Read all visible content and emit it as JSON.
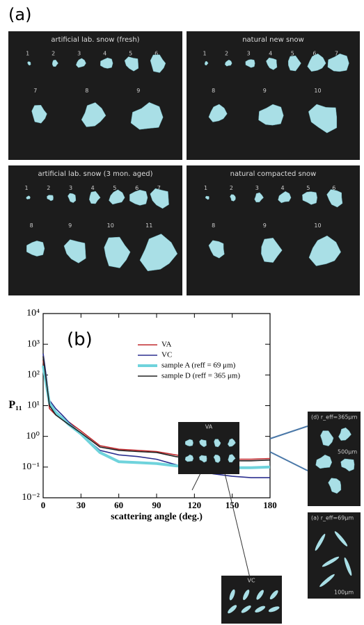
{
  "panel_a": {
    "label": "(a)",
    "panels": [
      {
        "title": "artificial lab. snow (fresh)",
        "labels": [
          [
            "1",
            "2",
            "3",
            "4",
            "5",
            "6"
          ],
          [
            "7",
            "8",
            "9"
          ]
        ]
      },
      {
        "title": "natural new snow",
        "labels": [
          [
            "1",
            "2",
            "3",
            "4",
            "5",
            "6",
            "7"
          ],
          [
            "8",
            "9",
            "10"
          ]
        ]
      },
      {
        "title": "artificial lab. snow (3 mon. aged)",
        "labels": [
          [
            "1",
            "2",
            "3",
            "4",
            "5",
            "6",
            "7"
          ],
          [
            "8",
            "9",
            "10",
            "11"
          ]
        ]
      },
      {
        "title": "natural compacted snow",
        "labels": [
          [
            "1",
            "2",
            "3",
            "4",
            "5",
            "6"
          ],
          [
            "8",
            "9",
            "10"
          ]
        ]
      }
    ]
  },
  "insets": {
    "va": "VA",
    "vc": "VC",
    "d_title": "(d) r_eff=365μm",
    "d_scale": "500μm",
    "a_title": "(a) r_eff=69μm",
    "a_scale": "100μm"
  },
  "chart_data": {
    "type": "line",
    "label": "(b)",
    "xlabel": "scattering angle (deg.)",
    "ylabel": "P₁₁",
    "x": [
      0,
      5,
      10,
      15,
      20,
      30,
      45,
      60,
      75,
      90,
      105,
      120,
      135,
      150,
      165,
      180
    ],
    "series": [
      {
        "name": "VA",
        "color": "#c0282d",
        "values": [
          300,
          8,
          5,
          4,
          3,
          1.5,
          0.5,
          0.38,
          0.35,
          0.32,
          0.25,
          0.2,
          0.18,
          0.18,
          0.18,
          0.19
        ]
      },
      {
        "name": "VC",
        "color": "#2b2f8f",
        "values": [
          500,
          15,
          8,
          5,
          3,
          1.2,
          0.35,
          0.25,
          0.22,
          0.18,
          0.12,
          0.08,
          0.06,
          0.05,
          0.045,
          0.045
        ]
      },
      {
        "name": "sample A (reff = 69 μm)",
        "color": "#6fd3dc",
        "values": [
          200,
          12,
          6,
          4,
          2.5,
          1.2,
          0.3,
          0.15,
          0.14,
          0.13,
          0.11,
          0.1,
          0.095,
          0.095,
          0.095,
          0.1
        ]
      },
      {
        "name": "sample D (reff = 365 μm)",
        "color": "#222222",
        "values": [
          400,
          10,
          5,
          3.5,
          2.5,
          1.3,
          0.45,
          0.35,
          0.32,
          0.3,
          0.22,
          0.18,
          0.17,
          0.16,
          0.16,
          0.17
        ]
      }
    ],
    "xlim": [
      0,
      180
    ],
    "xticks": [
      0,
      30,
      60,
      90,
      120,
      150,
      180
    ],
    "ylim": [
      0.01,
      10000
    ],
    "log_y": true,
    "yticks": [
      {
        "value": 0.01,
        "label": "10⁻²"
      },
      {
        "value": 0.1,
        "label": "10⁻¹"
      },
      {
        "value": 1,
        "label": "10⁰"
      },
      {
        "value": 10,
        "label": "10¹"
      },
      {
        "value": 100,
        "label": "10²"
      },
      {
        "value": 1000,
        "label": "10³"
      },
      {
        "value": 10000,
        "label": "10⁴"
      }
    ]
  }
}
